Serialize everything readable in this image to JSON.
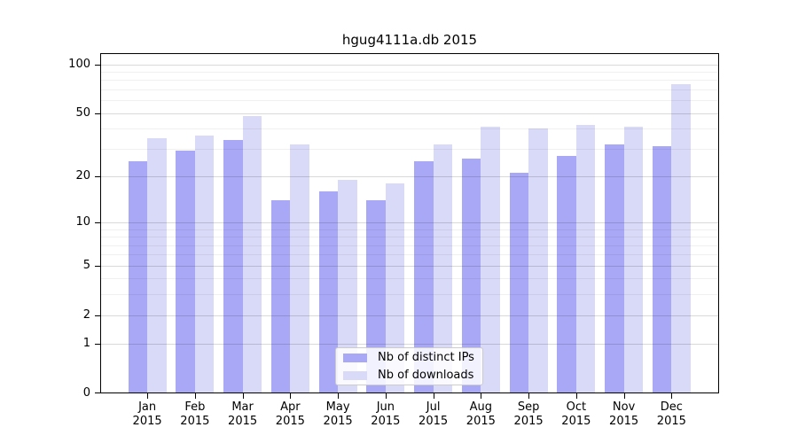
{
  "chart_data": {
    "type": "bar",
    "title": "hgug4111a.db 2015",
    "categories": [
      "Jan",
      "Feb",
      "Mar",
      "Apr",
      "May",
      "Jun",
      "Jul",
      "Aug",
      "Sep",
      "Oct",
      "Nov",
      "Dec"
    ],
    "x_year_label": "2015",
    "series": [
      {
        "name": "Nb of distinct IPs",
        "color": "#a8a8f7",
        "values": [
          25,
          29,
          34,
          14,
          16,
          14,
          25,
          26,
          21,
          27,
          32,
          31
        ]
      },
      {
        "name": "Nb of downloads",
        "color": "#d9d9f8",
        "values": [
          35,
          36,
          48,
          32,
          19,
          18,
          32,
          41,
          40,
          42,
          41,
          75
        ]
      }
    ],
    "yscale": "log10(value+1)",
    "yticks": [
      0,
      1,
      2,
      5,
      10,
      20,
      50,
      100
    ],
    "minor_gridlines": [
      3,
      4,
      6,
      7,
      8,
      9,
      30,
      40,
      60,
      70,
      80,
      90
    ],
    "ylim": [
      0,
      117
    ],
    "grid": "horizontal",
    "legend_position": "lower-center",
    "axis_color": "#000000",
    "major_grid_color": "#d9d9d9",
    "minor_grid_color": "#efefef"
  }
}
